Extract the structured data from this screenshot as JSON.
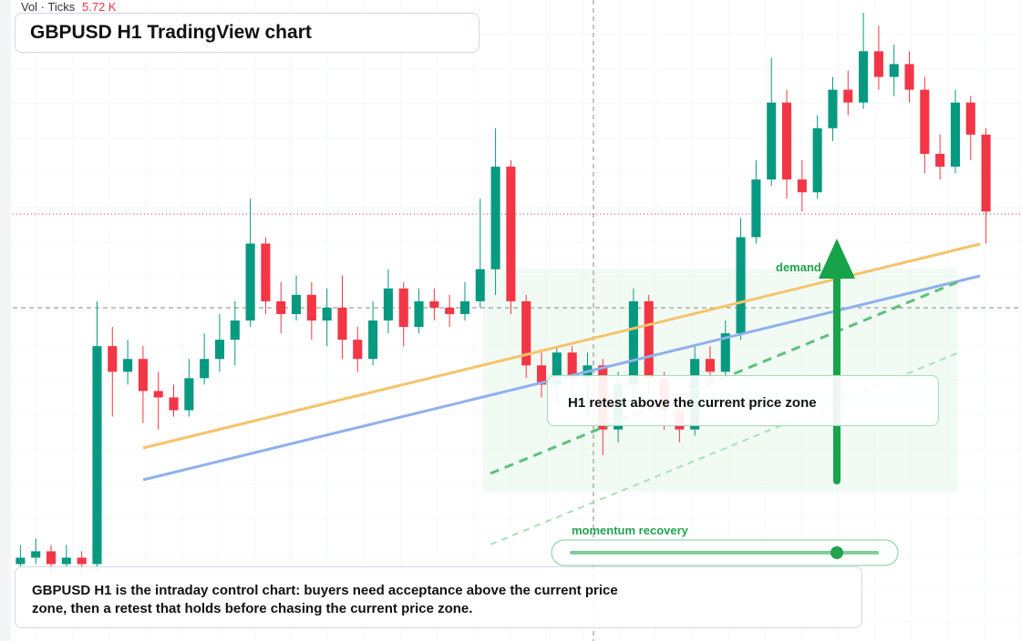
{
  "chart_data": {
    "type": "candlestick",
    "title": "GBPUSD H1 TradingView chart",
    "volume_label": "Vol · Ticks",
    "volume_value": "5.72 K",
    "ylim": [
      0,
      100
    ],
    "up_color": "#089981",
    "down_color": "#f23645",
    "open": [
      12,
      13,
      14,
      12,
      13,
      12,
      46,
      42,
      44,
      39,
      38,
      36,
      41,
      44,
      47,
      50,
      62,
      53,
      51,
      54,
      50,
      52,
      47,
      44,
      50,
      55,
      49,
      53,
      52,
      51,
      53,
      58,
      74,
      53,
      43,
      40,
      45,
      41,
      43,
      33,
      40,
      53,
      41,
      36,
      33,
      44,
      42,
      48,
      63,
      72,
      84,
      72,
      70,
      80,
      86,
      84,
      92,
      88,
      90,
      86,
      76,
      74,
      84,
      79
    ],
    "high": [
      15,
      16,
      15,
      15,
      14,
      53,
      49,
      47,
      46,
      42,
      40,
      44,
      48,
      51,
      53,
      69,
      63,
      56,
      57,
      56,
      55,
      57,
      49,
      53,
      58,
      56,
      55,
      55,
      54,
      56,
      69,
      80,
      75,
      54,
      45,
      46,
      46,
      45,
      44,
      42,
      55,
      54,
      42,
      38,
      46,
      46,
      50,
      66,
      75,
      91,
      86,
      75,
      82,
      88,
      89,
      98,
      96,
      93,
      92,
      88,
      79,
      86,
      85,
      80
    ],
    "low": [
      11,
      12,
      10,
      11,
      10,
      11,
      35,
      40,
      34,
      33,
      35,
      35,
      40,
      42,
      43,
      49,
      51,
      48,
      50,
      47,
      46,
      44,
      42,
      43,
      48,
      46,
      48,
      50,
      49,
      50,
      52,
      54,
      51,
      41,
      38,
      37,
      38,
      35,
      29,
      31,
      38,
      37,
      33,
      31,
      32,
      40,
      41,
      47,
      62,
      71,
      69,
      67,
      69,
      78,
      82,
      83,
      86,
      85,
      84,
      73,
      72,
      73,
      75,
      62
    ],
    "close": [
      13,
      14,
      12,
      13,
      12,
      46,
      42,
      44,
      39,
      38,
      36,
      41,
      44,
      47,
      50,
      62,
      53,
      51,
      54,
      50,
      52,
      47,
      44,
      50,
      55,
      49,
      53,
      52,
      51,
      53,
      58,
      74,
      53,
      43,
      40,
      45,
      41,
      43,
      33,
      40,
      53,
      41,
      36,
      33,
      44,
      42,
      48,
      63,
      72,
      84,
      72,
      70,
      80,
      86,
      84,
      92,
      88,
      90,
      86,
      76,
      74,
      84,
      79,
      67
    ]
  },
  "annotations": {
    "zone_label": "demand side",
    "retest": "H1 retest above the current price zone",
    "momentum": "momentum recovery",
    "note": "GBPUSD H1 is the intraday control chart: buyers need acceptance above the current price zone, then a retest that holds before chasing the current price zone."
  }
}
